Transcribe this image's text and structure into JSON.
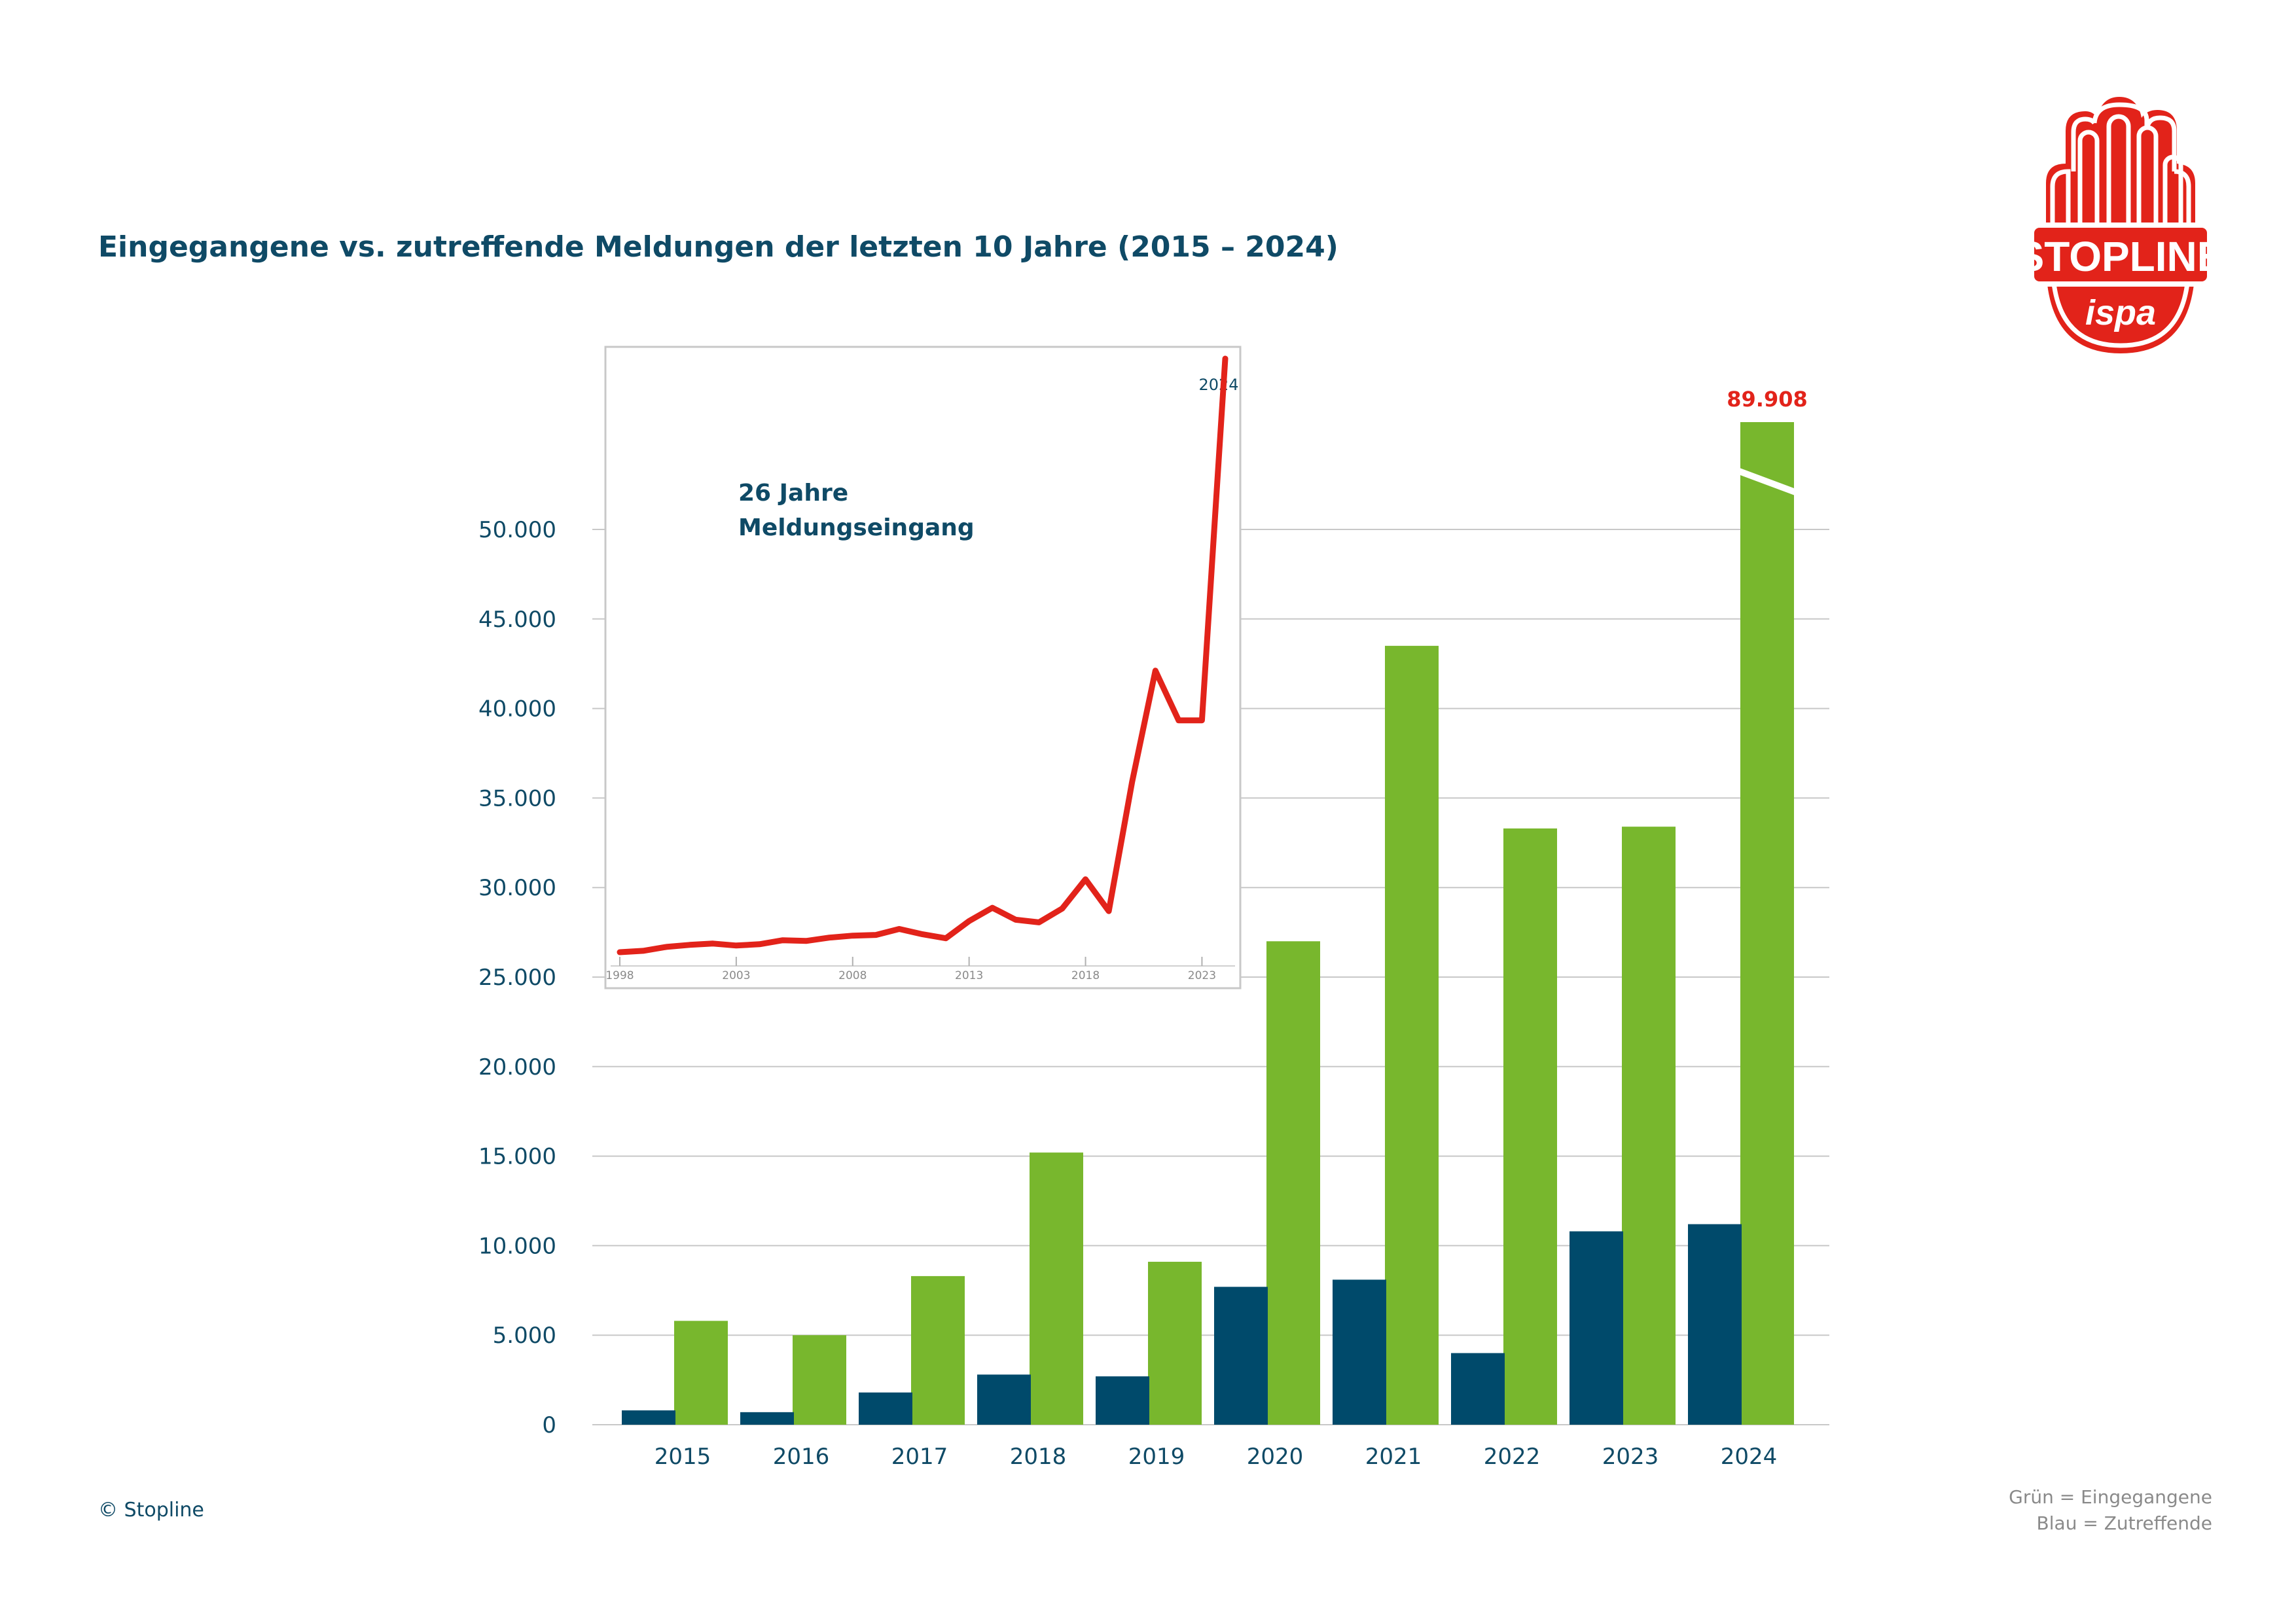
{
  "title": "Eingegangene vs. zutreffende Meldungen der letzten 10 Jahre (2015 – 2024)",
  "copyright": "© Stopline",
  "legend": {
    "green": "Grün = Eingegangene",
    "blue": "Blau = Zutreffende"
  },
  "logo": {
    "text_main": "STOPLINE",
    "text_sub": "ispa"
  },
  "colors": {
    "green": "#78b72d",
    "blue": "#004a6b",
    "red": "#e2231a",
    "text": "#0f4a66",
    "grid": "#c8c8c8"
  },
  "chart_data": [
    {
      "type": "bar",
      "categories": [
        "2015",
        "2016",
        "2017",
        "2018",
        "2019",
        "2020",
        "2021",
        "2022",
        "2023",
        "2024"
      ],
      "series": [
        {
          "values": [
            5800,
            5000,
            8300,
            15200,
            9100,
            27000,
            43500,
            33300,
            33400,
            89908
          ]
        },
        {
          "values": [
            800,
            700,
            1800,
            2800,
            2700,
            7700,
            8100,
            4000,
            10800,
            11200
          ]
        }
      ],
      "y_ticks": [
        "0",
        "5.000",
        "10.000",
        "15.000",
        "20.000",
        "25.000",
        "30.000",
        "35.000",
        "40.000",
        "45.000",
        "50.000"
      ],
      "ylim": [
        0,
        55000
      ],
      "axis_break": true,
      "annotations": [
        {
          "category": "2024",
          "text": "89.908"
        }
      ],
      "grid": true
    },
    {
      "type": "line",
      "title_lines": [
        "26 Jahre",
        "Meldungseingang"
      ],
      "x_ticks": [
        "1998",
        "2003",
        "2008",
        "2013",
        "2018",
        "2023"
      ],
      "end_label": "2024",
      "x": [
        1998,
        1999,
        2000,
        2001,
        2002,
        2003,
        2004,
        2005,
        2006,
        2007,
        2008,
        2009,
        2010,
        2011,
        2012,
        2013,
        2014,
        2015,
        2016,
        2017,
        2018,
        2019,
        2020,
        2021,
        2022,
        2023,
        2024
      ],
      "values": [
        300,
        500,
        1100,
        1400,
        1600,
        1300,
        1500,
        2100,
        2000,
        2500,
        2800,
        2900,
        3800,
        3000,
        2400,
        5000,
        7000,
        5200,
        4800,
        6900,
        11300,
        6500,
        26000,
        42800,
        35300,
        35300,
        89908
      ]
    }
  ]
}
